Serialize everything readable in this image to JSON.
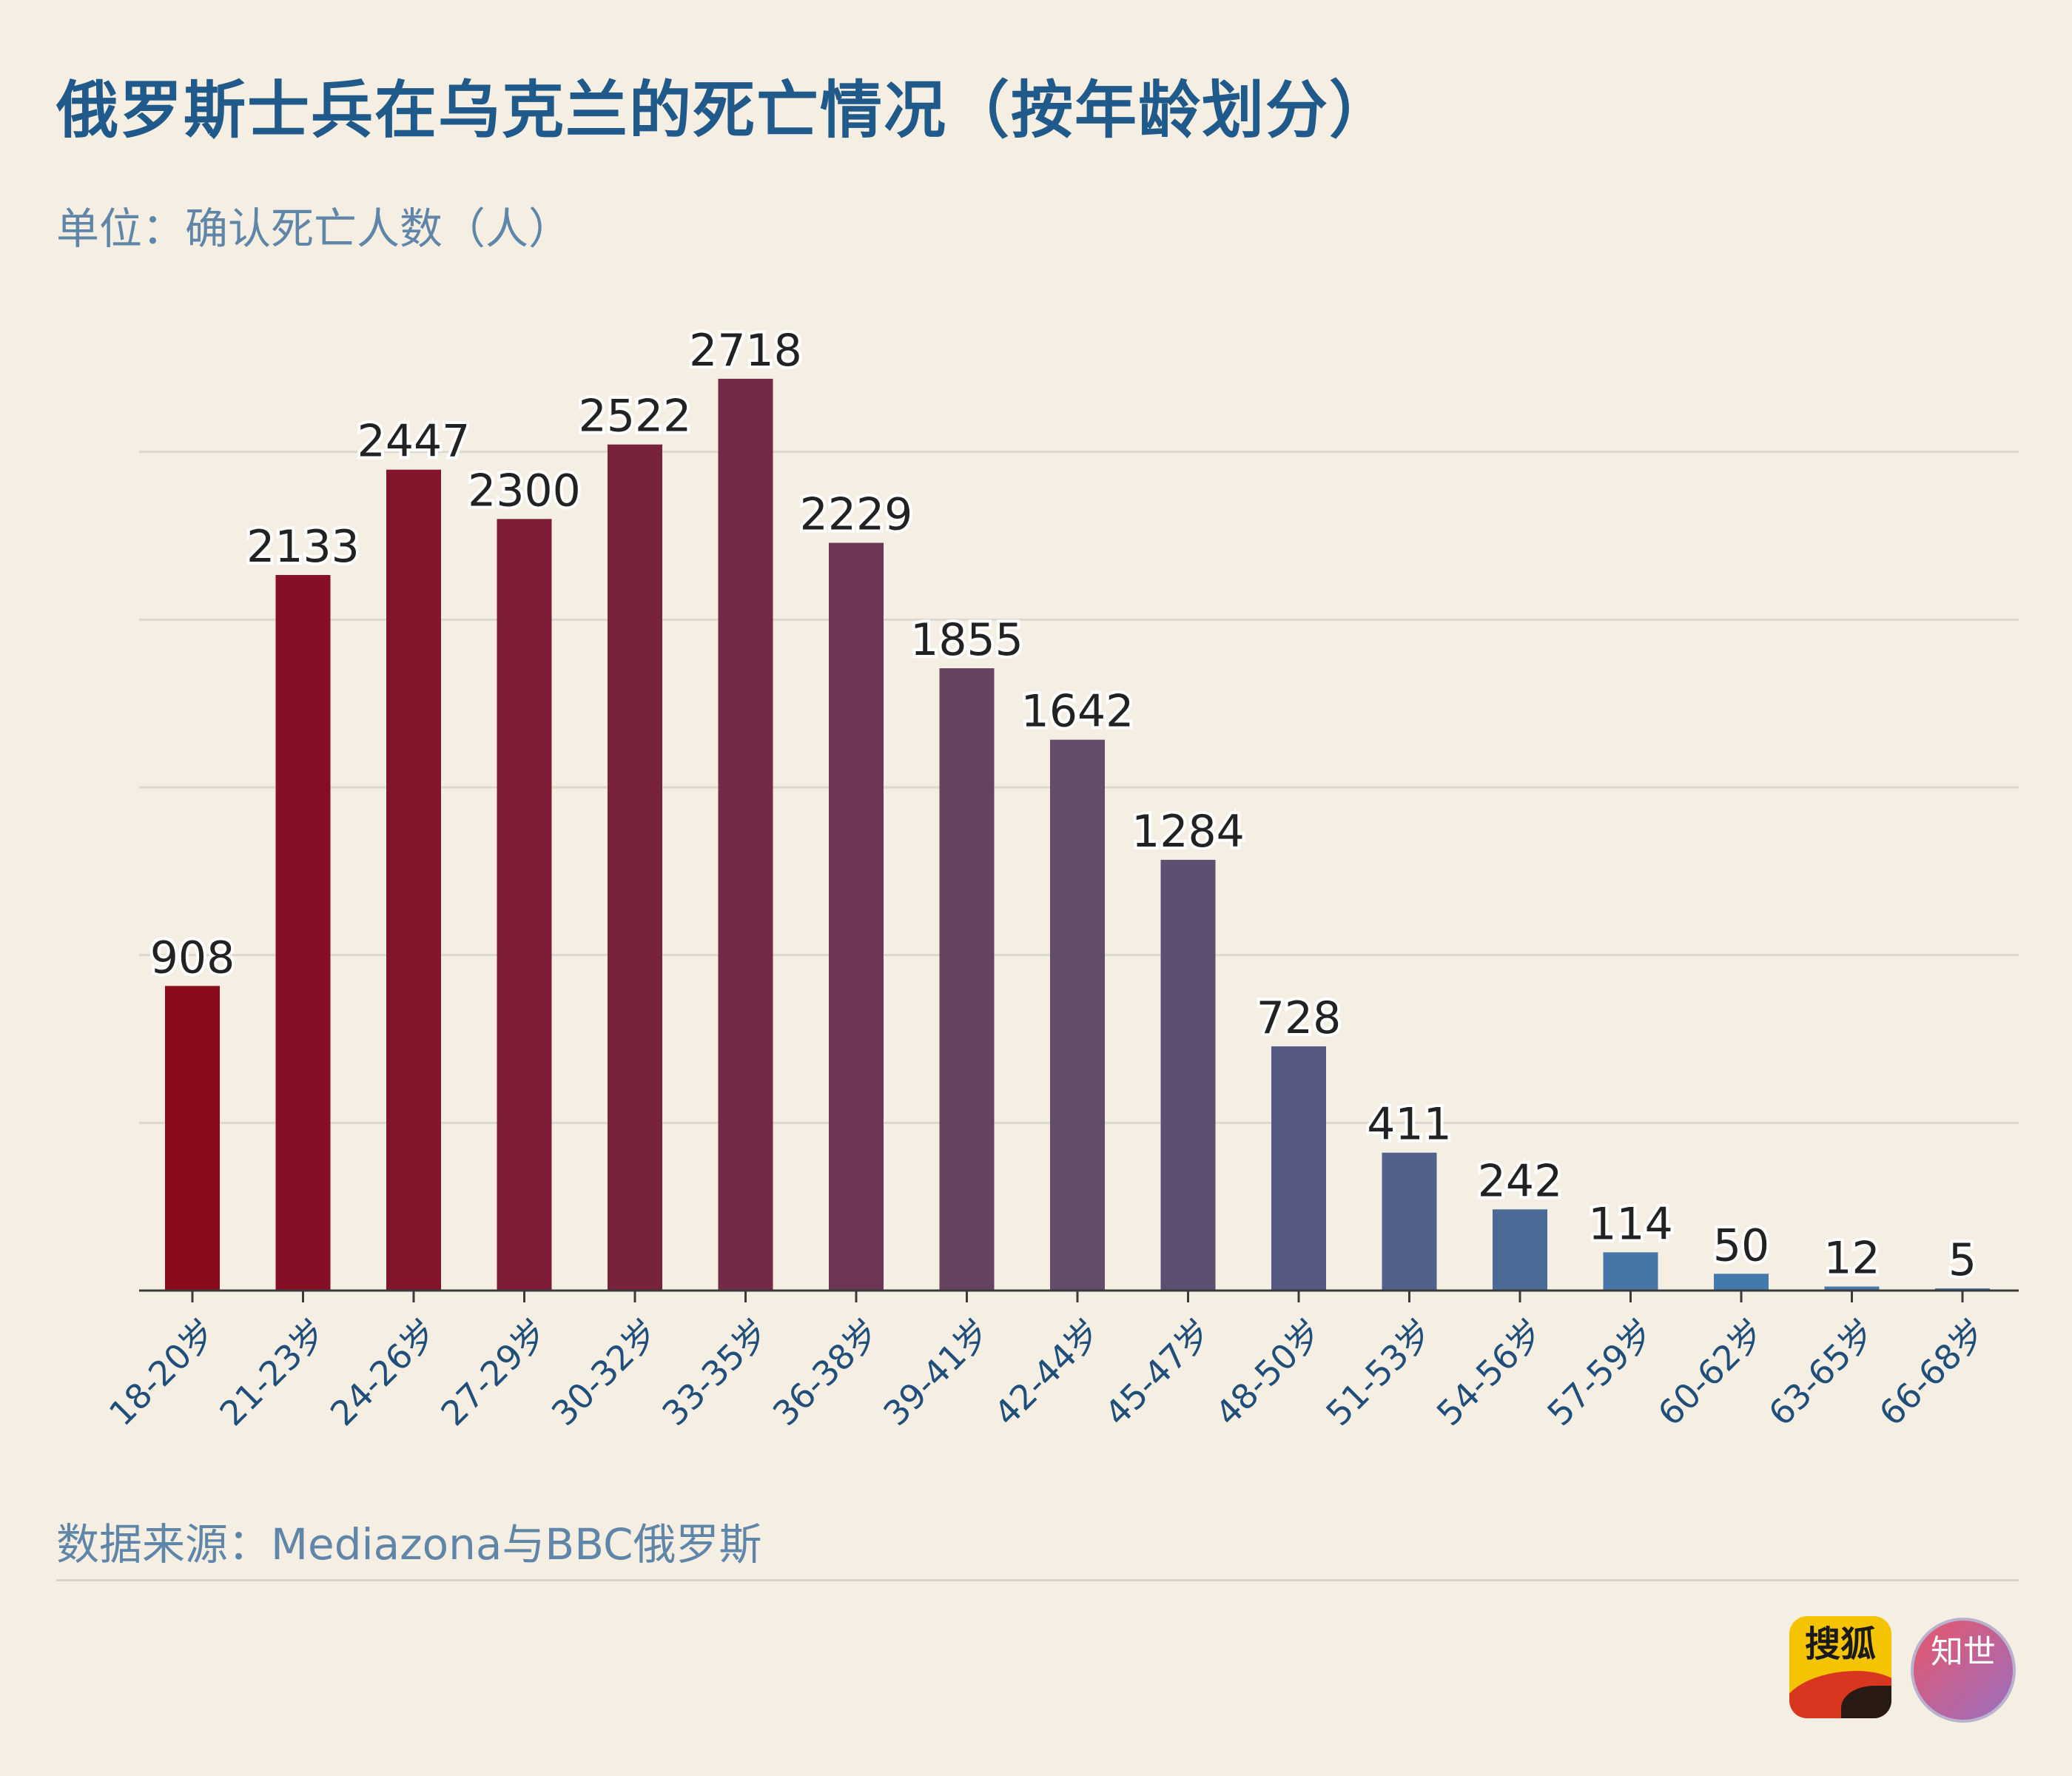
{
  "header": {
    "title": "俄罗斯士兵在乌克兰的死亡情况（按年龄划分）",
    "subtitle": "单位：确认死亡人数（人）"
  },
  "footer": {
    "source": "数据来源：Mediazona与BBC俄罗斯"
  },
  "logos": {
    "sohu_text": "搜狐",
    "zhishi_text": "知世"
  },
  "colors": {
    "background": "#f5efe3",
    "title": "#1f5a8a",
    "subtitle": "#5f86a8",
    "bar_start": "#8a0a1c",
    "bar_end": "#4a7aab",
    "axis_label": "#1f4e7a",
    "value_label": "#222222"
  },
  "chart_data": {
    "type": "bar",
    "title": "俄罗斯士兵在乌克兰的死亡情况（按年龄划分）",
    "ylabel": "",
    "xlabel": "",
    "ylim": [
      0,
      3000
    ],
    "grid": true,
    "categories": [
      "18-20岁",
      "21-23岁",
      "24-26岁",
      "27-29岁",
      "30-32岁",
      "33-35岁",
      "36-38岁",
      "39-41岁",
      "42-44岁",
      "45-47岁",
      "48-50岁",
      "51-53岁",
      "54-56岁",
      "57-59岁",
      "60-62岁",
      "63-65岁",
      "66-68岁"
    ],
    "values": [
      908,
      2133,
      2447,
      2300,
      2522,
      2718,
      2229,
      1855,
      1642,
      1284,
      728,
      411,
      242,
      114,
      50,
      12,
      5
    ],
    "bar_colors": [
      "#890b1d",
      "#860f26",
      "#83152b",
      "#7d1d35",
      "#79223c",
      "#742a47",
      "#6d3655",
      "#664460",
      "#614c6a",
      "#5c4f72",
      "#565a82",
      "#52618c",
      "#4b6a95",
      "#4675a6",
      "#4479ab",
      "#4679aa",
      "#4a7aab"
    ]
  }
}
